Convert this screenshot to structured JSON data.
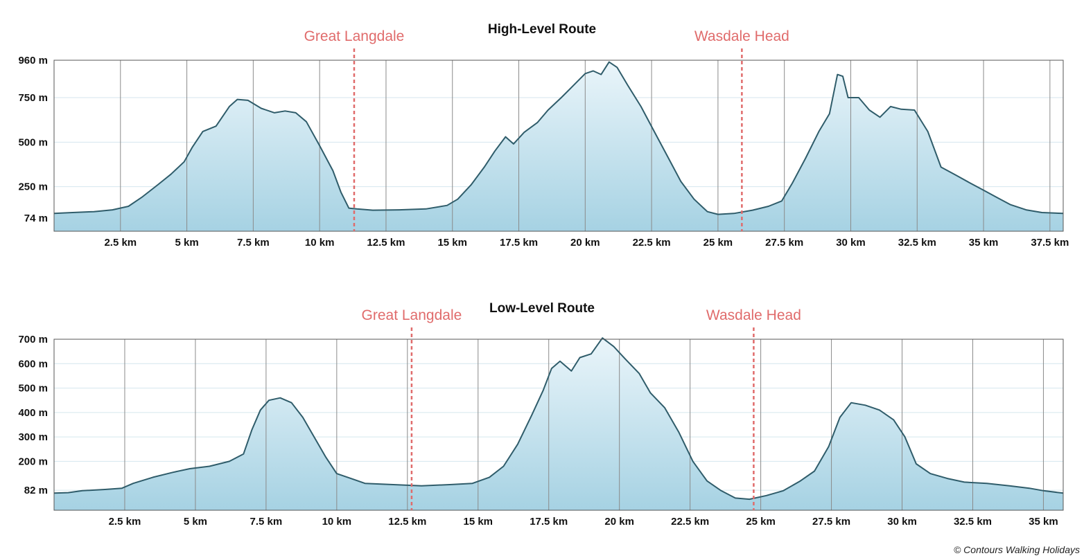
{
  "credit": "© Contours Walking Holidays",
  "colors": {
    "line": "#2f5c6a",
    "fill_top": "#eaf5fa",
    "fill_bottom": "#a6d2e3",
    "vgrid": "#8a8a8a",
    "hgrid": "#d4e6ee",
    "marker": "#e06b6b"
  },
  "chart_data": [
    {
      "type": "area",
      "title": "High-Level Route",
      "xlim": [
        0,
        38
      ],
      "ylim": [
        0,
        960
      ],
      "y_ticks": [
        74,
        250,
        500,
        750,
        960
      ],
      "y_tick_labels": [
        "74 m",
        "250 m",
        "500 m",
        "750 m",
        "960 m"
      ],
      "x_ticks": [
        2.5,
        5,
        7.5,
        10,
        12.5,
        15,
        17.5,
        20,
        22.5,
        25,
        27.5,
        30,
        32.5,
        35,
        37.5
      ],
      "x_tick_labels": [
        "2.5 km",
        "5 km",
        "7.5 km",
        "10 km",
        "12.5 km",
        "15 km",
        "17.5 km",
        "20 km",
        "22.5 km",
        "25 km",
        "27.5 km",
        "30 km",
        "32.5 km",
        "35 km",
        "37.5 km"
      ],
      "markers": [
        {
          "label": "Great Langdale",
          "x": 11.3
        },
        {
          "label": "Wasdale Head",
          "x": 25.9
        }
      ],
      "profile": [
        [
          0,
          100
        ],
        [
          0.7,
          105
        ],
        [
          1.5,
          110
        ],
        [
          2.2,
          120
        ],
        [
          2.8,
          140
        ],
        [
          3.3,
          190
        ],
        [
          3.9,
          260
        ],
        [
          4.4,
          320
        ],
        [
          4.9,
          390
        ],
        [
          5.2,
          470
        ],
        [
          5.6,
          560
        ],
        [
          6.1,
          590
        ],
        [
          6.6,
          700
        ],
        [
          6.9,
          740
        ],
        [
          7.3,
          735
        ],
        [
          7.8,
          690
        ],
        [
          8.3,
          665
        ],
        [
          8.7,
          675
        ],
        [
          9.1,
          665
        ],
        [
          9.5,
          615
        ],
        [
          10.0,
          480
        ],
        [
          10.5,
          340
        ],
        [
          10.8,
          220
        ],
        [
          11.1,
          130
        ],
        [
          11.4,
          125
        ],
        [
          12.0,
          118
        ],
        [
          13.0,
          120
        ],
        [
          14.0,
          125
        ],
        [
          14.8,
          145
        ],
        [
          15.2,
          180
        ],
        [
          15.7,
          260
        ],
        [
          16.2,
          360
        ],
        [
          16.6,
          450
        ],
        [
          17.0,
          530
        ],
        [
          17.3,
          490
        ],
        [
          17.7,
          555
        ],
        [
          18.2,
          610
        ],
        [
          18.6,
          680
        ],
        [
          19.1,
          750
        ],
        [
          19.5,
          810
        ],
        [
          20.0,
          885
        ],
        [
          20.3,
          900
        ],
        [
          20.6,
          880
        ],
        [
          20.9,
          950
        ],
        [
          21.2,
          920
        ],
        [
          21.6,
          820
        ],
        [
          22.1,
          700
        ],
        [
          22.6,
          560
        ],
        [
          23.1,
          420
        ],
        [
          23.6,
          280
        ],
        [
          24.1,
          180
        ],
        [
          24.6,
          110
        ],
        [
          25.0,
          95
        ],
        [
          25.6,
          100
        ],
        [
          26.3,
          118
        ],
        [
          26.9,
          140
        ],
        [
          27.4,
          170
        ],
        [
          27.8,
          270
        ],
        [
          28.3,
          410
        ],
        [
          28.8,
          560
        ],
        [
          29.2,
          660
        ],
        [
          29.5,
          880
        ],
        [
          29.7,
          870
        ],
        [
          29.9,
          750
        ],
        [
          30.3,
          750
        ],
        [
          30.7,
          680
        ],
        [
          31.1,
          640
        ],
        [
          31.5,
          700
        ],
        [
          31.9,
          685
        ],
        [
          32.4,
          680
        ],
        [
          32.9,
          560
        ],
        [
          33.4,
          360
        ],
        [
          33.9,
          320
        ],
        [
          34.5,
          270
        ],
        [
          35.0,
          230
        ],
        [
          35.5,
          190
        ],
        [
          36.0,
          150
        ],
        [
          36.6,
          120
        ],
        [
          37.2,
          105
        ],
        [
          38.0,
          100
        ]
      ]
    },
    {
      "type": "area",
      "title": "Low-Level Route",
      "xlim": [
        0,
        35.7
      ],
      "ylim": [
        0,
        700
      ],
      "y_ticks": [
        82,
        200,
        300,
        400,
        500,
        600,
        700
      ],
      "y_tick_labels": [
        "82 m",
        "200 m",
        "300 m",
        "400 m",
        "500 m",
        "600 m",
        "700 m"
      ],
      "x_ticks": [
        2.5,
        5,
        7.5,
        10,
        12.5,
        15,
        17.5,
        20,
        22.5,
        25,
        27.5,
        30,
        32.5,
        35
      ],
      "x_tick_labels": [
        "2.5 km",
        "5 km",
        "7.5 km",
        "10 km",
        "12.5 km",
        "15 km",
        "17.5 km",
        "20 km",
        "22.5 km",
        "25 km",
        "27.5 km",
        "30 km",
        "32.5 km",
        "35 km"
      ],
      "markers": [
        {
          "label": "Great Langdale",
          "x": 12.65
        },
        {
          "label": "Wasdale Head",
          "x": 24.75
        }
      ],
      "profile": [
        [
          0,
          70
        ],
        [
          0.5,
          72
        ],
        [
          1.0,
          80
        ],
        [
          1.8,
          85
        ],
        [
          2.4,
          90
        ],
        [
          2.8,
          110
        ],
        [
          3.5,
          135
        ],
        [
          4.2,
          155
        ],
        [
          4.8,
          170
        ],
        [
          5.5,
          180
        ],
        [
          6.2,
          200
        ],
        [
          6.7,
          230
        ],
        [
          7.0,
          330
        ],
        [
          7.3,
          410
        ],
        [
          7.6,
          450
        ],
        [
          8.0,
          460
        ],
        [
          8.4,
          440
        ],
        [
          8.8,
          380
        ],
        [
          9.2,
          300
        ],
        [
          9.6,
          220
        ],
        [
          10.0,
          150
        ],
        [
          10.5,
          130
        ],
        [
          11.0,
          110
        ],
        [
          12.0,
          105
        ],
        [
          13.0,
          100
        ],
        [
          14.0,
          105
        ],
        [
          14.8,
          110
        ],
        [
          15.4,
          135
        ],
        [
          15.9,
          180
        ],
        [
          16.4,
          270
        ],
        [
          16.9,
          390
        ],
        [
          17.3,
          490
        ],
        [
          17.6,
          580
        ],
        [
          17.9,
          610
        ],
        [
          18.3,
          570
        ],
        [
          18.6,
          625
        ],
        [
          19.0,
          640
        ],
        [
          19.4,
          705
        ],
        [
          19.8,
          670
        ],
        [
          20.2,
          620
        ],
        [
          20.7,
          560
        ],
        [
          21.1,
          480
        ],
        [
          21.6,
          420
        ],
        [
          22.1,
          320
        ],
        [
          22.6,
          200
        ],
        [
          23.1,
          120
        ],
        [
          23.6,
          80
        ],
        [
          24.1,
          50
        ],
        [
          24.6,
          45
        ],
        [
          25.2,
          60
        ],
        [
          25.8,
          80
        ],
        [
          26.4,
          120
        ],
        [
          26.9,
          160
        ],
        [
          27.4,
          260
        ],
        [
          27.8,
          380
        ],
        [
          28.2,
          440
        ],
        [
          28.7,
          430
        ],
        [
          29.2,
          410
        ],
        [
          29.7,
          370
        ],
        [
          30.1,
          300
        ],
        [
          30.5,
          190
        ],
        [
          31.0,
          150
        ],
        [
          31.6,
          130
        ],
        [
          32.2,
          115
        ],
        [
          33.0,
          110
        ],
        [
          33.8,
          100
        ],
        [
          34.5,
          90
        ],
        [
          35.0,
          80
        ],
        [
          35.7,
          70
        ]
      ]
    }
  ]
}
